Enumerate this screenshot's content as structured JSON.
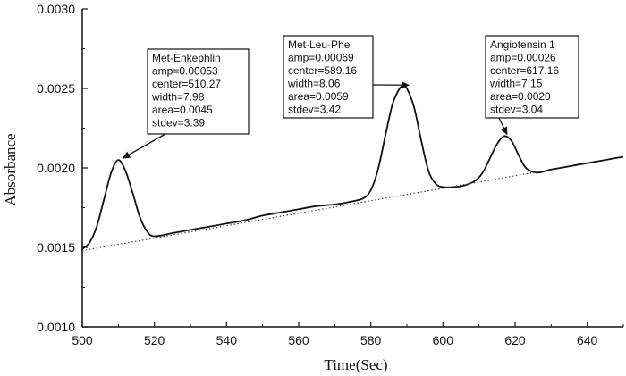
{
  "chart_data": {
    "type": "line",
    "xlabel": "Time(Sec)",
    "ylabel": "Absorbance",
    "xlim": [
      500,
      650
    ],
    "ylim": [
      0.001,
      0.003
    ],
    "x_ticks": [
      500,
      520,
      540,
      560,
      580,
      600,
      620,
      640
    ],
    "x_tick_labels": [
      "500",
      "520",
      "540",
      "560",
      "580",
      "600",
      "620",
      "640"
    ],
    "y_ticks": [
      0.001,
      0.0015,
      0.002,
      0.0025,
      0.003
    ],
    "y_tick_labels": [
      "0.0010",
      "0.0015",
      "0.0020",
      "0.0025",
      "0.0030"
    ],
    "grid": false,
    "series": [
      {
        "style": "solid",
        "x": [
          500,
          502,
          504,
          506,
          508,
          510,
          512,
          514,
          516,
          518,
          520,
          525,
          530,
          535,
          540,
          545,
          550,
          555,
          560,
          565,
          570,
          575,
          578,
          580,
          582,
          584,
          586,
          588,
          589,
          590,
          592,
          594,
          596,
          598,
          600,
          603,
          606,
          609,
          611,
          613,
          615,
          617,
          619,
          621,
          623,
          626,
          630,
          635,
          640,
          645,
          650
        ],
        "y": [
          0.00149,
          0.00153,
          0.00163,
          0.0018,
          0.00197,
          0.00205,
          0.00198,
          0.00184,
          0.00169,
          0.0016,
          0.00157,
          0.00159,
          0.00161,
          0.00163,
          0.00165,
          0.00167,
          0.0017,
          0.00172,
          0.00174,
          0.00176,
          0.00177,
          0.00179,
          0.00181,
          0.00186,
          0.00199,
          0.0022,
          0.0024,
          0.0025,
          0.00251,
          0.0025,
          0.00238,
          0.00217,
          0.00198,
          0.0019,
          0.00188,
          0.00188,
          0.00189,
          0.00192,
          0.00197,
          0.00206,
          0.00215,
          0.0022,
          0.00217,
          0.00208,
          0.002,
          0.00197,
          0.00199,
          0.00201,
          0.00203,
          0.00205,
          0.00207
        ]
      },
      {
        "style": "dotted",
        "x": [
          500,
          625
        ],
        "y": [
          0.00148,
          0.00197
        ]
      }
    ],
    "annotations": [
      {
        "lines": [
          "Met-Enkephlin",
          "amp=0.00053",
          "center=510.27",
          "width=7.98",
          "area=0.0045",
          "stdev=3.39"
        ],
        "points_to": [
          510.5,
          0.00205
        ]
      },
      {
        "lines": [
          "Met-Leu-Phe",
          "amp=0.00069",
          "center=589.16",
          "width=8.06",
          "area=0.0059",
          "stdev=3.42"
        ],
        "points_to": [
          589,
          0.00251
        ]
      },
      {
        "lines": [
          "Angiotensin 1",
          "amp=0.00026",
          "center=617.16",
          "width=7.15",
          "area=0.0020",
          "stdev=3.04"
        ],
        "points_to": [
          617,
          0.0022
        ]
      }
    ]
  }
}
